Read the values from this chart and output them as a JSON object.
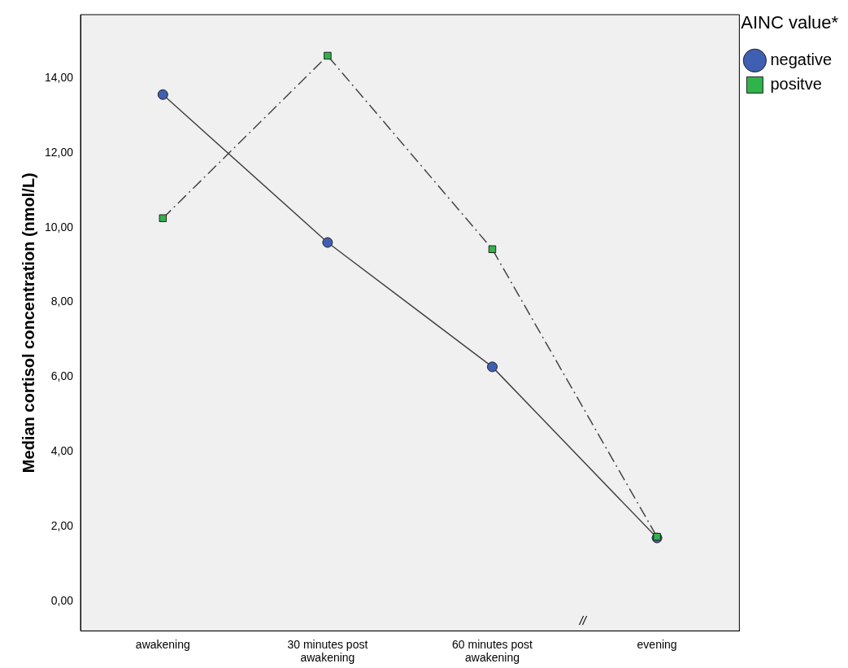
{
  "chart_data": {
    "type": "line",
    "ylabel": "Median cortisol concentration (nmol/L)",
    "legend_title": "AINC value*",
    "categories": [
      "awakening",
      "30 minutes post awakening",
      "60 minutes post awakening",
      "evening"
    ],
    "series": [
      {
        "name": "negative",
        "color": "#3f5fb3",
        "values": [
          13.56,
          9.6,
          6.27,
          1.69
        ],
        "marker": "circle",
        "line_style": "solid"
      },
      {
        "name": "positve",
        "color": "#2fb34a",
        "values": [
          10.25,
          14.6,
          9.42,
          1.72
        ],
        "marker": "square",
        "line_style": "dashed"
      }
    ],
    "ylim": [
      -0.8,
      15.7
    ],
    "yticks": [
      {
        "value": 0,
        "label": "0,00"
      },
      {
        "value": 2,
        "label": "2,00"
      },
      {
        "value": 4,
        "label": "4,00"
      },
      {
        "value": 6,
        "label": "6,00"
      },
      {
        "value": 8,
        "label": "8,00"
      },
      {
        "value": 10,
        "label": "10,00"
      },
      {
        "value": 12,
        "label": "12,00"
      },
      {
        "value": 14,
        "label": "14,00"
      }
    ],
    "annotations": [
      "//"
    ],
    "legend": "right",
    "grid": false
  }
}
